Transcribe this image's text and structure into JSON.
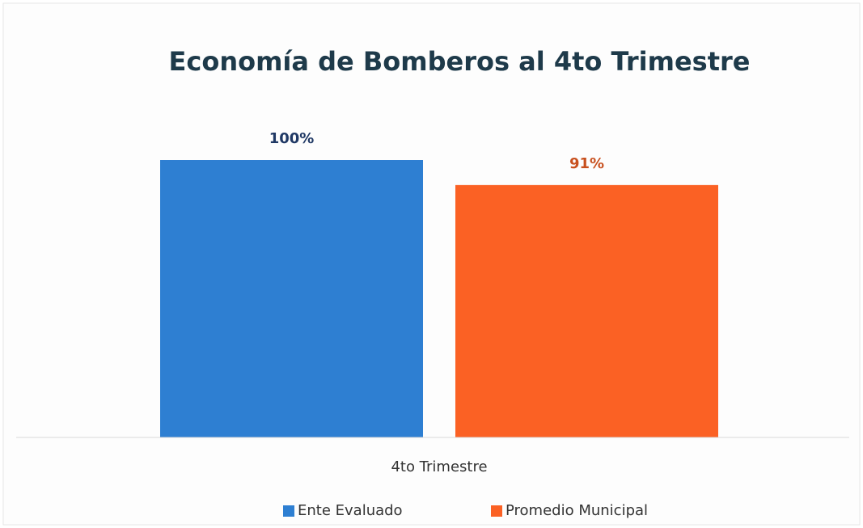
{
  "chart_data": {
    "type": "bar",
    "title": "Economía de Bomberos al 4to Trimestre",
    "categories": [
      "4to Trimestre"
    ],
    "series": [
      {
        "name": "Ente Evaluado",
        "color": "#2e7fd2",
        "label_color": "#1f3864",
        "values": [
          100
        ],
        "value_labels": [
          "100%"
        ]
      },
      {
        "name": "Promedio Municipal",
        "color": "#fb6124",
        "label_color": "#c8501e",
        "values": [
          91
        ],
        "value_labels": [
          "91%"
        ]
      }
    ],
    "ylim": [
      0,
      100
    ],
    "legend": "bottom"
  }
}
